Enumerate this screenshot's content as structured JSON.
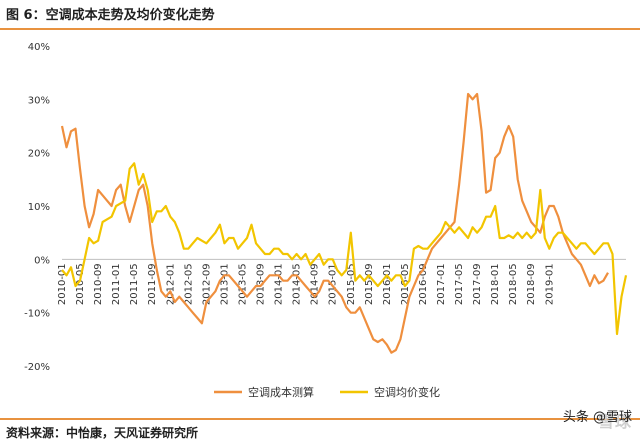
{
  "header": {
    "title": "图 6：空调成本走势及均价变化走势"
  },
  "footer": {
    "source": "资料来源：中怡康，天风证券研究所",
    "watermark": "雪球",
    "watermark2": "头条 @雪球"
  },
  "colors": {
    "series_cost": "#ef8f3e",
    "series_price": "#f2c500",
    "rule": "#e8923f"
  },
  "chart_data": {
    "type": "line",
    "title": "",
    "xlabel": "",
    "ylabel": "",
    "ylim": [
      -20,
      40
    ],
    "yticks": [
      "40%",
      "30%",
      "20%",
      "10%",
      "0%",
      "-10%",
      "-20%"
    ],
    "ytick_values": [
      40,
      30,
      20,
      10,
      0,
      -10,
      -20
    ],
    "xticks": [
      "2010-01",
      "2010-05",
      "2010-09",
      "2011-01",
      "2011-05",
      "2011-09",
      "2012-01",
      "2012-05",
      "2012-09",
      "2013-01",
      "2013-05",
      "2013-09",
      "2014-01",
      "2014-05",
      "2014-09",
      "2015-01",
      "2015-05",
      "2015-09",
      "2016-01",
      "2016-05",
      "2016-09",
      "2017-01",
      "2017-05",
      "2017-09",
      "2018-01",
      "2018-05",
      "2018-09",
      "2019-01"
    ],
    "legend": "bottom-center",
    "grid": false,
    "x_start": "2010-01",
    "series": [
      {
        "name": "空调成本测算",
        "values": [
          25,
          21,
          24,
          24.5,
          17,
          10,
          6,
          8.5,
          13,
          12,
          11,
          10,
          13,
          14,
          10,
          7,
          10,
          13,
          14,
          10,
          3,
          -2,
          -6,
          -7,
          -6,
          -8,
          -7,
          -8,
          -9,
          -10,
          -11,
          -12,
          -8,
          -7,
          -6,
          -4,
          -3,
          -3,
          -4,
          -5,
          -6,
          -7,
          -6,
          -5,
          -5,
          -4,
          -3,
          -3,
          -3,
          -4,
          -4,
          -3,
          -3,
          -4,
          -5,
          -6,
          -7,
          -6,
          -4,
          -4,
          -5,
          -6,
          -7,
          -9,
          -10,
          -10,
          -9,
          -11,
          -13,
          -15,
          -15.5,
          -15,
          -16,
          -17.5,
          -17,
          -15,
          -11,
          -7,
          -5,
          -3,
          -2,
          0,
          2,
          3,
          4,
          5,
          6,
          7,
          14,
          22,
          31,
          30,
          31,
          24,
          12.5,
          13,
          19,
          20,
          23,
          25,
          23,
          15,
          11,
          9,
          7,
          6,
          5,
          8,
          10,
          10,
          8,
          5,
          3,
          1,
          0,
          -1,
          -3,
          -5,
          -3,
          -4.5,
          -4,
          -2.5
        ]
      },
      {
        "name": "空调均价变化",
        "values": [
          -2,
          -3,
          -1.5,
          -5,
          -4,
          0,
          4,
          3,
          3.5,
          7,
          7.5,
          8,
          10,
          10.5,
          11,
          17,
          18,
          14,
          16,
          13,
          7,
          9,
          9,
          10,
          8,
          7,
          5,
          2,
          2,
          3,
          4,
          3.5,
          3,
          4,
          5,
          6.5,
          3,
          4,
          4,
          2,
          3,
          4,
          6.5,
          3,
          2,
          1,
          1,
          2,
          2,
          1,
          1,
          0,
          1,
          0,
          1,
          -1,
          0,
          1,
          -1,
          0,
          0,
          -2,
          -3,
          -2,
          5,
          -4,
          -3,
          -4,
          -3,
          -4,
          -5,
          -4,
          -3,
          -4,
          -3,
          -3,
          -5,
          -4,
          2,
          2.5,
          2,
          2,
          3,
          4,
          5,
          7,
          6,
          5,
          6,
          5,
          4,
          6,
          5,
          6,
          8,
          8,
          10,
          4,
          4,
          4.5,
          4,
          5,
          4,
          5,
          4,
          5,
          13,
          4,
          2,
          4,
          5,
          5,
          4,
          3,
          2,
          3,
          3,
          2,
          1,
          2,
          3,
          3,
          1,
          -14,
          -7,
          -3
        ]
      }
    ]
  }
}
